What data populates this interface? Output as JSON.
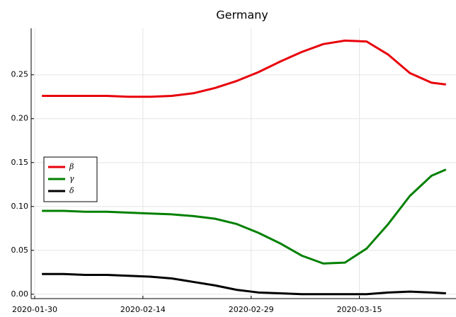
{
  "chart_data": {
    "type": "line",
    "title": "Germany",
    "x": [
      "2020-01-31",
      "2020-02-03",
      "2020-02-06",
      "2020-02-09",
      "2020-02-12",
      "2020-02-15",
      "2020-02-18",
      "2020-02-21",
      "2020-02-24",
      "2020-02-27",
      "2020-03-01",
      "2020-03-04",
      "2020-03-07",
      "2020-03-10",
      "2020-03-13",
      "2020-03-16",
      "2020-03-19",
      "2020-03-22",
      "2020-03-25",
      "2020-03-27"
    ],
    "series": [
      {
        "name": "β",
        "color": "#e8000b",
        "values": [
          0.226,
          0.226,
          0.226,
          0.226,
          0.225,
          0.225,
          0.226,
          0.229,
          0.235,
          0.243,
          0.253,
          0.265,
          0.276,
          0.285,
          0.289,
          0.288,
          0.273,
          0.252,
          0.241,
          0.239
        ]
      },
      {
        "name": "γ",
        "color": "#008000",
        "values": [
          0.095,
          0.095,
          0.094,
          0.094,
          0.093,
          0.092,
          0.091,
          0.089,
          0.086,
          0.08,
          0.07,
          0.058,
          0.044,
          0.035,
          0.036,
          0.052,
          0.08,
          0.112,
          0.135,
          0.142
        ]
      },
      {
        "name": "δ",
        "color": "#000000",
        "values": [
          0.023,
          0.023,
          0.022,
          0.022,
          0.021,
          0.02,
          0.018,
          0.014,
          0.01,
          0.005,
          0.002,
          0.001,
          0.0,
          0.0,
          0.0,
          0.0,
          0.002,
          0.003,
          0.002,
          0.001
        ]
      }
    ],
    "xlim": [
      "2020-01-30",
      "2020-03-28"
    ],
    "xticks": [
      "2020-01-30",
      "2020-02-14",
      "2020-02-29",
      "2020-03-15"
    ],
    "ylim": [
      -0.005,
      0.303
    ],
    "yticks": [
      {
        "value": 0,
        "label": "0.00"
      },
      {
        "value": 0.05,
        "label": "0.05"
      },
      {
        "value": 0.1,
        "label": "0.10"
      },
      {
        "value": 0.15,
        "label": "0.15"
      },
      {
        "value": 0.2,
        "label": "0.20"
      },
      {
        "value": 0.25,
        "label": "0.25"
      }
    ],
    "grid": true,
    "legend": "center left"
  }
}
